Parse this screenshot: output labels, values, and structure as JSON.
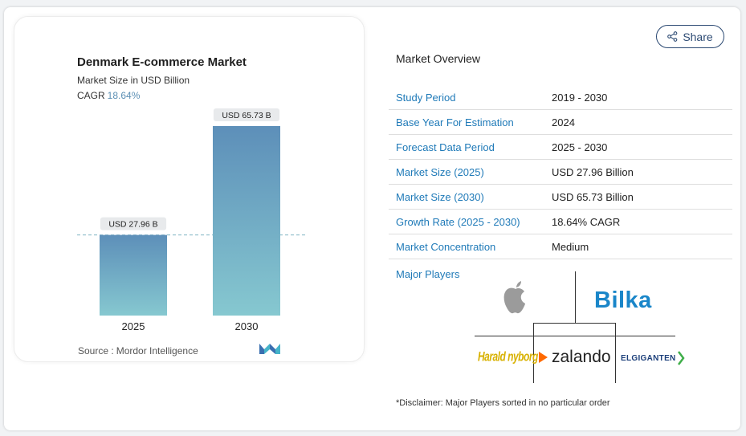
{
  "chart_data": {
    "type": "bar",
    "title": "Denmark E-commerce Market",
    "subtitle": "Market Size in USD Billion",
    "cagr_label": "CAGR",
    "cagr_value": "18.64%",
    "categories": [
      "2025",
      "2030"
    ],
    "values": [
      27.96,
      65.73
    ],
    "data_labels": [
      "USD 27.96 B",
      "USD 65.73 B"
    ],
    "ylim": [
      0,
      65.73
    ],
    "grid": false,
    "reference_line": "dashed line at 2025 value",
    "colors": {
      "bar_top": "#5d8fb9",
      "bar_bottom": "#86c8d0"
    }
  },
  "source": {
    "label": "Source :",
    "name": "Mordor Intelligence"
  },
  "share": {
    "label": "Share"
  },
  "overview": {
    "title": "Market Overview",
    "rows": [
      {
        "label": "Study Period",
        "value": "2019 - 2030"
      },
      {
        "label": "Base Year For Estimation",
        "value": "2024"
      },
      {
        "label": "Forecast Data Period",
        "value": "2025 - 2030"
      },
      {
        "label": "Market Size (2025)",
        "value": "USD 27.96 Billion"
      },
      {
        "label": "Market Size (2030)",
        "value": "USD 65.73 Billion"
      },
      {
        "label": "Growth Rate (2025 - 2030)",
        "value": "18.64% CAGR"
      },
      {
        "label": "Market Concentration",
        "value": "Medium"
      }
    ]
  },
  "players": {
    "label": "Major Players",
    "logos": [
      "Apple",
      "Bilka",
      "Harald Nyborg",
      "zalando",
      "ELGIGANTEN"
    ],
    "bilka_text": "Bilka",
    "harald_text": "Harald nyborg",
    "zalando_text": "zalando",
    "elgiganten_text": "ELGIGANTEN"
  },
  "disclaimer": "*Disclaimer: Major Players sorted in no particular order",
  "colors": {
    "accent": "#1f7ab8",
    "share_border": "#2c4a73",
    "cagr": "#5b8fb4"
  }
}
